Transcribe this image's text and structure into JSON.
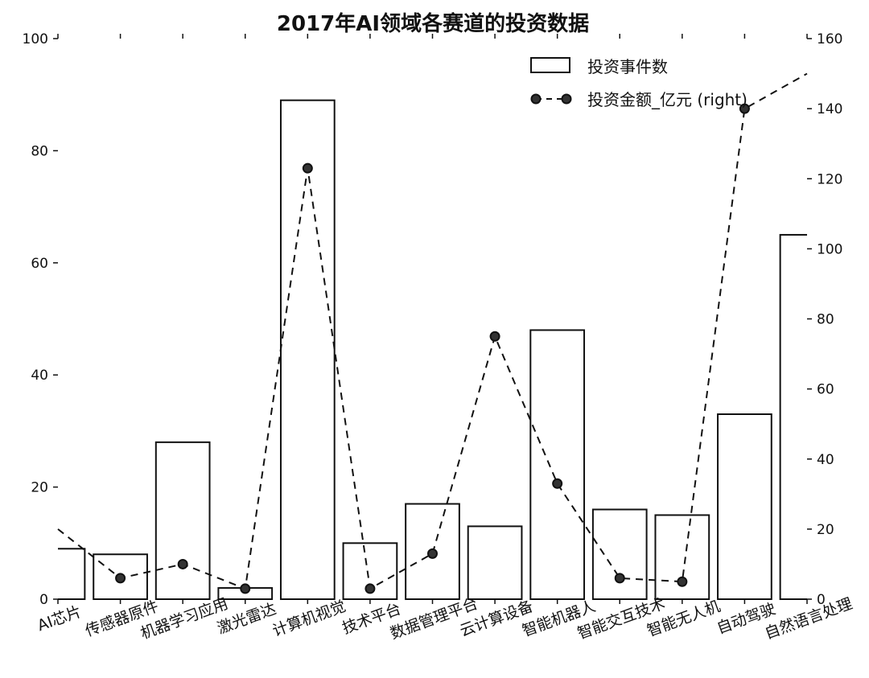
{
  "chart_data": {
    "type": "bar",
    "title": "2017年AI领域各赛道的投资数据",
    "categories": [
      "AI芯片",
      "传感器原件",
      "机器学习应用",
      "激光雷达",
      "计算机视觉",
      "技术平台",
      "数据管理平台",
      "云计算设备",
      "智能机器人",
      "智能交互技术",
      "智能无人机",
      "自动驾驶",
      "自然语言处理"
    ],
    "series": [
      {
        "name": "投资事件数",
        "type": "bar",
        "axis": "left",
        "values": [
          9,
          8,
          28,
          2,
          89,
          10,
          17,
          13,
          48,
          16,
          15,
          33,
          65
        ]
      },
      {
        "name": "投资金额_亿元 (right)",
        "type": "line",
        "style": "dashed",
        "marker": "circle",
        "axis": "right",
        "values": [
          20,
          6,
          10,
          3,
          123,
          3,
          13,
          75,
          33,
          6,
          5,
          140,
          150
        ]
      }
    ],
    "ylim_left": [
      0,
      100
    ],
    "ylim_right": [
      0,
      160
    ],
    "yticks_left": [
      "0",
      "20",
      "40",
      "60",
      "80",
      "100"
    ],
    "yticks_right": [
      "0",
      "20",
      "40",
      "60",
      "80",
      "100",
      "120",
      "140",
      "160"
    ],
    "legend_position": "top-right",
    "colors": {
      "bar_edge": "#111111",
      "bar_fill": "#ffffff",
      "line": "#111111",
      "marker": "#333333"
    }
  }
}
